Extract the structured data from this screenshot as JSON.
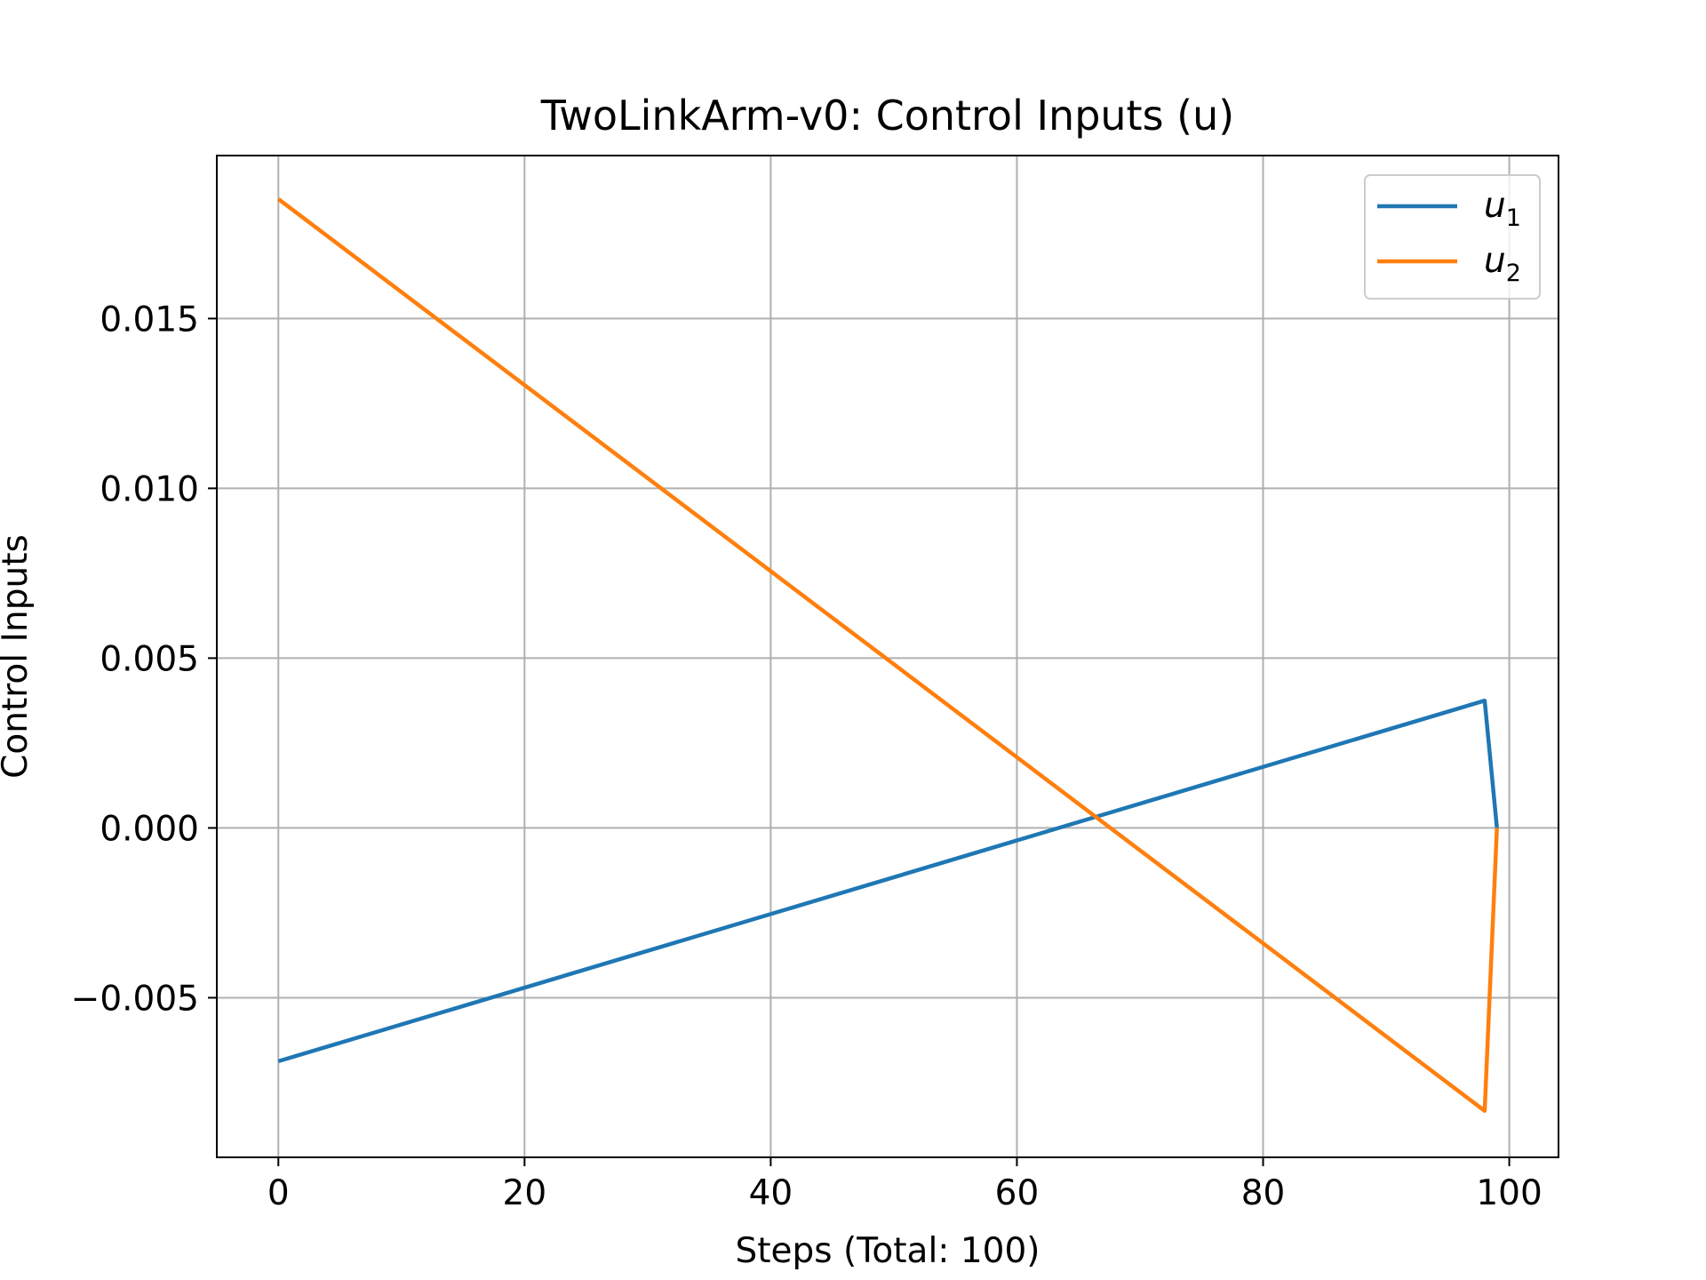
{
  "chart_data": {
    "type": "line",
    "title": "TwoLinkArm-v0: Control Inputs (u)",
    "xlabel": "Steps (Total: 100)",
    "ylabel": "Control Inputs",
    "xlim": [
      -5,
      104
    ],
    "ylim": [
      -0.0097,
      0.0198
    ],
    "xticks": [
      0,
      20,
      40,
      60,
      80,
      100
    ],
    "xtick_labels": [
      "0",
      "20",
      "40",
      "60",
      "80",
      "100"
    ],
    "yticks": [
      -0.005,
      0.0,
      0.005,
      0.01,
      0.015
    ],
    "ytick_labels": [
      "−0.005",
      "0.000",
      "0.005",
      "0.010",
      "0.015"
    ],
    "grid": true,
    "legend_position": "top-right",
    "series": [
      {
        "name": "u",
        "name_subscript": "1",
        "color": "#1f77b4",
        "x": [
          0,
          98,
          99
        ],
        "y": [
          -0.00687,
          0.00375,
          0.0
        ]
      },
      {
        "name": "u",
        "name_subscript": "2",
        "color": "#ff7f0e",
        "x": [
          0,
          98,
          99
        ],
        "y": [
          0.01852,
          -0.00833,
          0.0
        ]
      }
    ]
  }
}
